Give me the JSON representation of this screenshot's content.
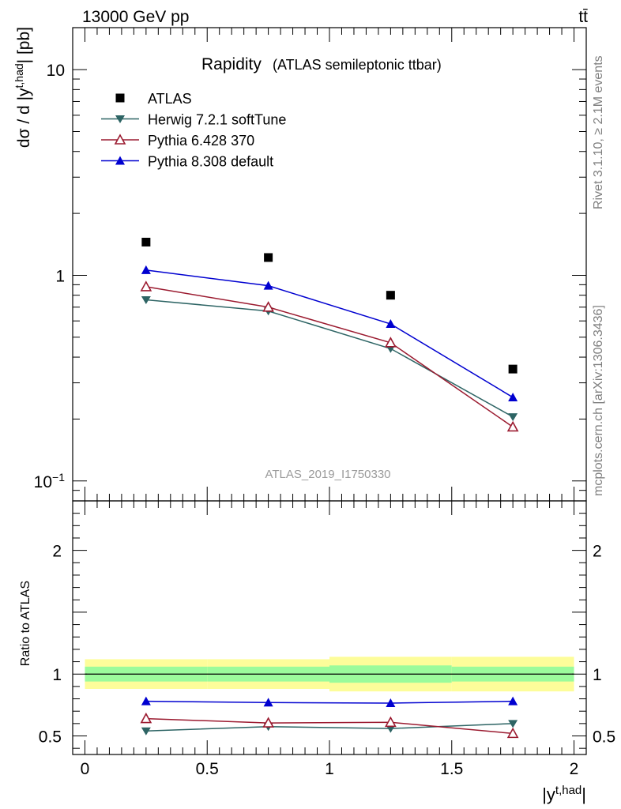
{
  "header": {
    "left": "13000 GeV pp",
    "right": "tt̄"
  },
  "side_text": {
    "top": "Rivet 3.1.10, ≥ 2.1M events",
    "bottom": "mcplots.cern.ch [arXiv:1306.3436]"
  },
  "chart_data": [
    {
      "type": "line",
      "title": "Rapidity",
      "subtitle": "(ATLAS semileptonic ttbar)",
      "analysis_label": "ATLAS_2019_I1750330",
      "ylabel": "dσ / d |y^{t,had}| [pb]",
      "yscale": "log",
      "ylim": [
        0.08,
        16
      ],
      "xlim": [
        -0.05,
        2.05
      ],
      "y_ticks": [
        {
          "v": 0.1,
          "label": "10",
          "sup": "−1"
        },
        {
          "v": 1,
          "label": "1",
          "sup": ""
        },
        {
          "v": 10,
          "label": "10",
          "sup": ""
        }
      ],
      "legend_position": "top-left",
      "x": [
        0.25,
        0.75,
        1.25,
        1.75
      ],
      "series": [
        {
          "name": "ATLAS",
          "marker": "square",
          "color": "#000000",
          "line": false,
          "values": [
            1.45,
            1.22,
            0.8,
            0.35
          ]
        },
        {
          "name": "Herwig 7.2.1 softTune",
          "marker": "triangle-down",
          "color": "#2d6464",
          "line": true,
          "values": [
            0.76,
            0.67,
            0.44,
            0.205
          ]
        },
        {
          "name": "Pythia 6.428 370",
          "marker": "triangle-up-open",
          "color": "#9b1b30",
          "line": true,
          "values": [
            0.88,
            0.7,
            0.47,
            0.183
          ]
        },
        {
          "name": "Pythia 8.308 default",
          "marker": "triangle-up",
          "color": "#0000d0",
          "line": true,
          "values": [
            1.06,
            0.89,
            0.58,
            0.255
          ]
        }
      ]
    },
    {
      "type": "line",
      "ylabel": "Ratio to ATLAS",
      "xlabel": "|y^{t,had}|",
      "ylim": [
        0.35,
        2.4
      ],
      "xlim": [
        -0.05,
        2.05
      ],
      "x_ticks": [
        "0",
        "0.5",
        "1",
        "1.5",
        "2"
      ],
      "y_ticks": [
        "0.5",
        "1",
        "2"
      ],
      "bands": {
        "edges": [
          0,
          0.5,
          1.0,
          1.5,
          2.0
        ],
        "yellow": [
          [
            0.88,
            1.12
          ],
          [
            0.88,
            1.12
          ],
          [
            0.86,
            1.14
          ],
          [
            0.86,
            1.14
          ]
        ],
        "green": [
          [
            0.94,
            1.06
          ],
          [
            0.94,
            1.06
          ],
          [
            0.93,
            1.07
          ],
          [
            0.94,
            1.06
          ]
        ]
      },
      "x": [
        0.25,
        0.75,
        1.25,
        1.75
      ],
      "series": [
        {
          "name": "Herwig 7.2.1 softTune",
          "values": [
            0.54,
            0.575,
            0.56,
            0.6
          ]
        },
        {
          "name": "Pythia 6.428 370",
          "values": [
            0.64,
            0.605,
            0.61,
            0.52
          ]
        },
        {
          "name": "Pythia 8.308 default",
          "values": [
            0.78,
            0.77,
            0.765,
            0.78
          ]
        }
      ]
    }
  ]
}
